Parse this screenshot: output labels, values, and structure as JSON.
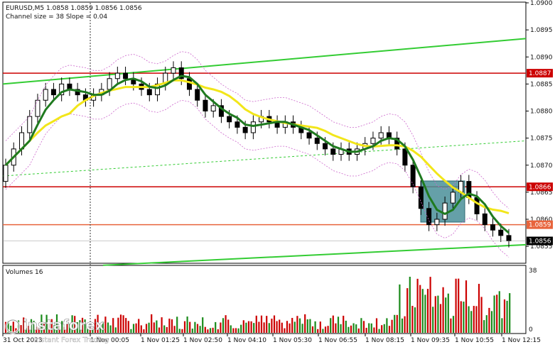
{
  "chart_data": {
    "type": "candlestick",
    "header": {
      "symbol_tf": "EURUSD,M5",
      "ohlc": "1.0858 1.0859 1.0856 1.0856",
      "channel_info": "Channel size = 38 Slope = 0.04"
    },
    "y_axis": {
      "range": [
        1.0852,
        1.09
      ],
      "ticks": [
        "1.0900",
        "1.0895",
        "1.0890",
        "1.0885",
        "1.0880",
        "1.0875",
        "1.0870",
        "1.0865",
        "1.0860",
        "1.0855"
      ]
    },
    "x_axis": {
      "ticks": [
        "31 Oct 2023",
        "1 Nov 00:05",
        "1 Nov 01:25",
        "1 Nov 02:50",
        "1 Nov 04:10",
        "1 Nov 05:30",
        "1 Nov 06:55",
        "1 Nov 08:15",
        "1 Nov 09:35",
        "1 Nov 10:55",
        "1 Nov 12:15"
      ]
    },
    "levels": [
      {
        "value": 1.0887,
        "label": "1.0887",
        "color": "#cc0000"
      },
      {
        "value": 1.0866,
        "label": "1.0866",
        "color": "#cc0000"
      },
      {
        "value": 1.0859,
        "label": "1.0859",
        "color": "#e8643c"
      }
    ],
    "current_price": {
      "value": 1.0856,
      "label": "1.0856"
    },
    "volume_panel": {
      "title": "Volumes 16",
      "ticks": [
        "38",
        "0"
      ],
      "range": [
        0,
        38
      ]
    },
    "close_series": [
      1.087,
      1.0873,
      1.0876,
      1.0879,
      1.0882,
      1.0884,
      1.0883,
      1.0885,
      1.0884,
      1.0883,
      1.0882,
      1.0883,
      1.0884,
      1.0886,
      1.0887,
      1.0886,
      1.0885,
      1.0884,
      1.0883,
      1.0885,
      1.0887,
      1.0888,
      1.0886,
      1.0884,
      1.0882,
      1.088,
      1.0881,
      1.0879,
      1.0878,
      1.0877,
      1.0876,
      1.0878,
      1.0879,
      1.0878,
      1.0877,
      1.0878,
      1.0877,
      1.0876,
      1.0875,
      1.0874,
      1.0873,
      1.0872,
      1.0873,
      1.0872,
      1.0873,
      1.0874,
      1.0875,
      1.0876,
      1.0875,
      1.0873,
      1.087,
      1.0866,
      1.0862,
      1.0859,
      1.086,
      1.0863,
      1.0865,
      1.0867,
      1.0864,
      1.0861,
      1.0859,
      1.0858,
      1.0857,
      1.0856
    ],
    "colors": {
      "bull": "#1a8a1a",
      "bear": "#cc0000",
      "candle": "#000000",
      "ma_fast": "#1f7a1f",
      "ma_slow": "#f2e61a",
      "channel": "#33cc33",
      "bands": "#cc66cc",
      "box": "#4a8f99"
    }
  },
  "watermark": {
    "brand": "instaforex",
    "tagline": "Instant Forex Trading"
  }
}
